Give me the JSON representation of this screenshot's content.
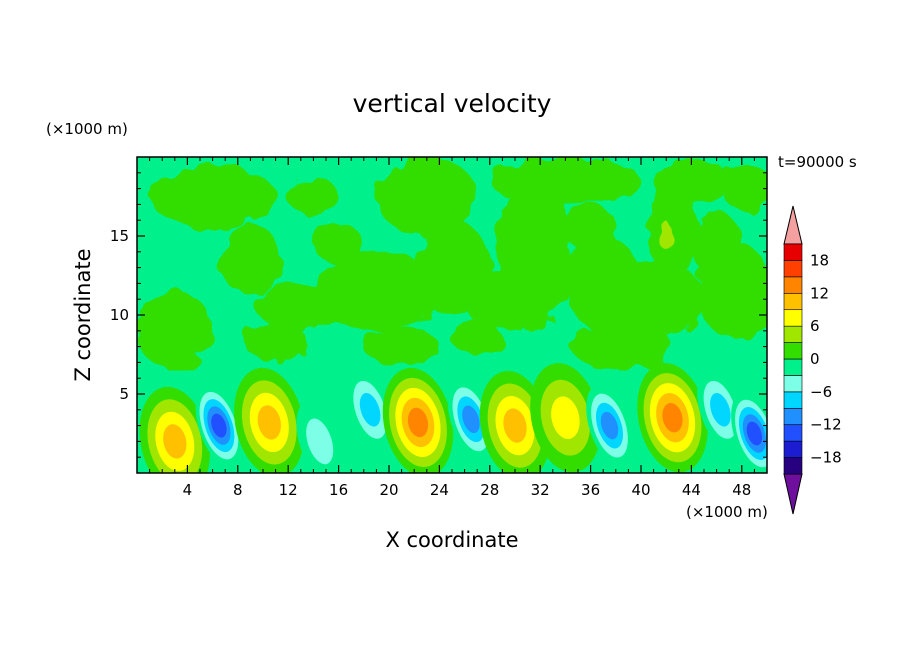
{
  "chart_data": {
    "type": "heatmap",
    "title": "vertical velocity",
    "xlabel": "X coordinate",
    "ylabel": "Z coordinate",
    "x_unit": "(×1000 m)",
    "y_unit": "(×1000 m)",
    "time_label": "t=90000 s",
    "xlim": [
      0,
      50
    ],
    "ylim": [
      0,
      20
    ],
    "x_ticks": [
      4,
      8,
      12,
      16,
      20,
      24,
      28,
      32,
      36,
      40,
      44,
      48
    ],
    "y_ticks": [
      5,
      10,
      15
    ],
    "colorbar": {
      "levels": [
        -21,
        -18,
        -15,
        -12,
        -9,
        -6,
        -3,
        0,
        3,
        6,
        9,
        12,
        15,
        18,
        21
      ],
      "tick_values": [
        18,
        12,
        6,
        0,
        -6,
        -12,
        -18
      ],
      "colors": [
        "#6e0f9e",
        "#26007f",
        "#1c1cd0",
        "#2050ff",
        "#2090ff",
        "#00d6ff",
        "#7cffe6",
        "#00f08c",
        "#33dd00",
        "#a0e600",
        "#ffff00",
        "#ffc000",
        "#ff8400",
        "#ff4000",
        "#e60000",
        "#f4a0a0"
      ]
    },
    "background_value": 0,
    "cells_upper_band": [
      {
        "x": 2,
        "z": 18,
        "level": 1
      },
      {
        "x": 9,
        "z": 16.5,
        "level": 1
      },
      {
        "x": 14,
        "z": 11,
        "level": 1
      },
      {
        "x": 23,
        "z": 18,
        "level": 1
      },
      {
        "x": 31,
        "z": 15,
        "level": 1
      },
      {
        "x": 40,
        "z": 11,
        "level": 1
      },
      {
        "x": 42,
        "z": 15,
        "level": 2
      },
      {
        "x": 47,
        "z": 11,
        "level": 1
      }
    ],
    "cells_lower_band": [
      {
        "x": 3.0,
        "z": 2.0,
        "peak": 10
      },
      {
        "x": 6.5,
        "z": 3.0,
        "peak": -12
      },
      {
        "x": 10.5,
        "z": 3.2,
        "peak": 9
      },
      {
        "x": 14.5,
        "z": 2.0,
        "peak": -3
      },
      {
        "x": 18.5,
        "z": 4.0,
        "peak": -6
      },
      {
        "x": 22.3,
        "z": 3.2,
        "peak": 13
      },
      {
        "x": 26.5,
        "z": 3.4,
        "peak": -10
      },
      {
        "x": 30.0,
        "z": 3.0,
        "peak": 9
      },
      {
        "x": 34.0,
        "z": 3.5,
        "peak": 7
      },
      {
        "x": 37.5,
        "z": 3.0,
        "peak": -9
      },
      {
        "x": 42.5,
        "z": 3.5,
        "peak": 12
      },
      {
        "x": 46.3,
        "z": 4.0,
        "peak": -5
      },
      {
        "x": 49.0,
        "z": 2.5,
        "peak": -11
      }
    ]
  }
}
